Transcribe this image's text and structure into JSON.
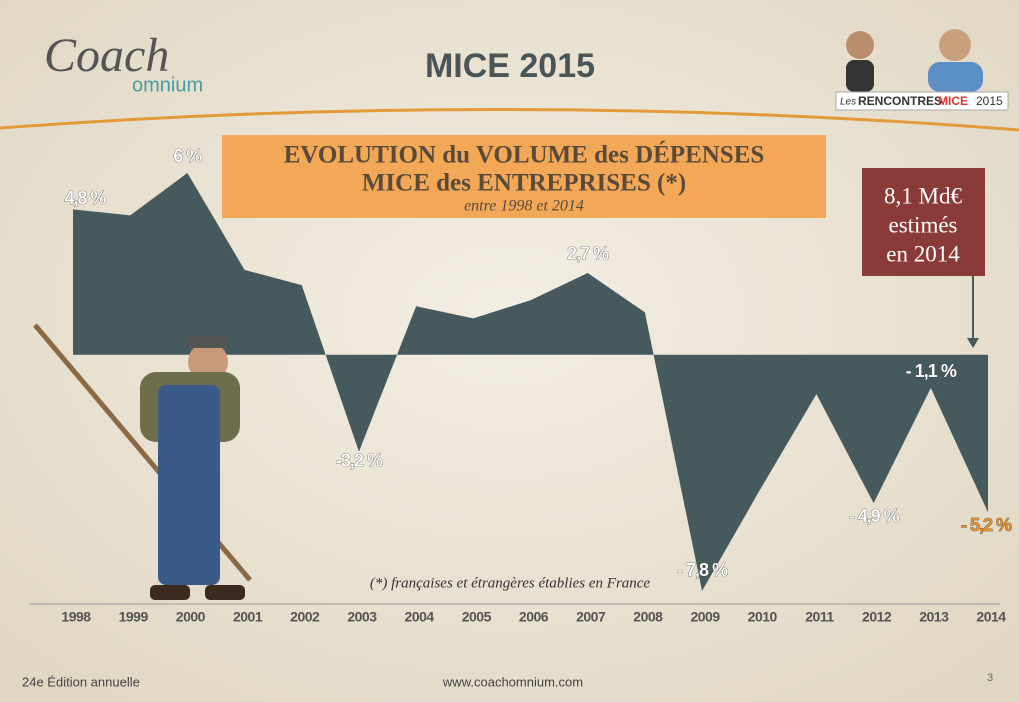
{
  "header": {
    "logo": "Coach",
    "logo_sub": "omnium",
    "title": "MICE 2015",
    "badge": {
      "prefix": "Les",
      "name": "RENCONTRES",
      "highlight": "MICE",
      "year": "2015"
    }
  },
  "chart_data": {
    "type": "area",
    "title": "EVOLUTION du VOLUME des DÉPENSES",
    "title_line2": "MICE des ENTREPRISES (*)",
    "subtitle": "entre 1998 et 2014",
    "categories": [
      "1998",
      "1999",
      "2000",
      "2001",
      "2002",
      "2003",
      "2004",
      "2005",
      "2006",
      "2007",
      "2008",
      "2009",
      "2010",
      "2011",
      "2012",
      "2013",
      "2014"
    ],
    "values": [
      4.8,
      4.6,
      6,
      2.8,
      2.3,
      -3.2,
      1.6,
      1.2,
      1.8,
      2.7,
      1.4,
      -7.8,
      -4.5,
      -1.3,
      -4.9,
      -1.1,
      -5.2
    ],
    "value_labels": [
      "4,8 %",
      null,
      "6 %",
      null,
      null,
      "-3,2 %",
      null,
      null,
      null,
      "2,7 %",
      null,
      "- 7,8 %",
      null,
      null,
      "- 4,9 %",
      "- 1,1 %",
      "- 5,2 %"
    ],
    "color": "#465a5d",
    "annotation": [
      "8,1 Md€",
      "estimés",
      "en 2014"
    ],
    "footnote": "(*) françaises et étrangères établies en France"
  },
  "footer": {
    "edition": "24e Édition annuelle",
    "url": "www.coachomnium.com",
    "page": "3"
  }
}
